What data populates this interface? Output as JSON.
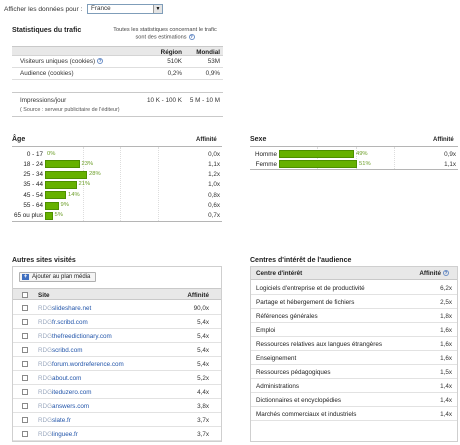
{
  "filter": {
    "label": "Afficher les données pour :",
    "country": "France"
  },
  "stats": {
    "title": "Statistiques du trafic",
    "note": "Toutes les statistiques concernant le trafic sont des estimations",
    "col_region": "Région",
    "col_world": "Mondial",
    "rows": [
      {
        "label": "Visiteurs uniques (cookies)",
        "region": "510K",
        "world": "53M"
      },
      {
        "label": "Audience (cookies)",
        "region": "0,2%",
        "world": "0,9%"
      }
    ],
    "impressions": {
      "label": "Impressions/jour",
      "region": "10 K - 100 K",
      "world": "5 M - 10 M",
      "source": "( Source : serveur publicitaire de l'éditeur)"
    }
  },
  "age": {
    "title": "Âge",
    "affinity_label": "Affinité",
    "rows": [
      {
        "label": "0 - 17",
        "pct": 0,
        "pct_text": "0%",
        "aff": "0,0x"
      },
      {
        "label": "18 - 24",
        "pct": 23,
        "pct_text": "23%",
        "aff": "1,1x"
      },
      {
        "label": "25 - 34",
        "pct": 28,
        "pct_text": "28%",
        "aff": "1,2x"
      },
      {
        "label": "35 - 44",
        "pct": 21,
        "pct_text": "21%",
        "aff": "1,0x"
      },
      {
        "label": "45 - 54",
        "pct": 14,
        "pct_text": "14%",
        "aff": "0,8x"
      },
      {
        "label": "55 - 64",
        "pct": 9,
        "pct_text": "9%",
        "aff": "0,6x"
      },
      {
        "label": "65 ou plus",
        "pct": 5,
        "pct_text": "5%",
        "aff": "0,7x"
      }
    ]
  },
  "sex": {
    "title": "Sexe",
    "affinity_label": "Affinité",
    "rows": [
      {
        "label": "Homme",
        "pct": 49,
        "pct_text": "49%",
        "aff": "0,9x"
      },
      {
        "label": "Femme",
        "pct": 51,
        "pct_text": "51%",
        "aff": "1,1x"
      }
    ]
  },
  "sites": {
    "title": "Autres sites visités",
    "add_button": "Ajouter au plan média",
    "col_site": "Site",
    "col_affinity": "Affinité",
    "prefix": "RDG",
    "rows": [
      {
        "site": "slideshare.net",
        "aff": "90,0x"
      },
      {
        "site": "fr.scribd.com",
        "aff": "5,4x"
      },
      {
        "site": "thefreedictionary.com",
        "aff": "5,4x"
      },
      {
        "site": "scribd.com",
        "aff": "5,4x"
      },
      {
        "site": "forum.wordreference.com",
        "aff": "5,4x"
      },
      {
        "site": "about.com",
        "aff": "5,2x"
      },
      {
        "site": "iteduzero.com",
        "aff": "4,4x"
      },
      {
        "site": "answers.com",
        "aff": "3,8x"
      },
      {
        "site": "slate.fr",
        "aff": "3,7x"
      },
      {
        "site": "linguee.fr",
        "aff": "3,7x"
      }
    ]
  },
  "interests": {
    "title": "Centres d'intérêt de l'audience",
    "col_name": "Centre d'intérêt",
    "col_affinity": "Affinité",
    "rows": [
      {
        "name": "Logiciels d'entreprise et de productivité",
        "aff": "6,2x"
      },
      {
        "name": "Partage et hébergement de fichiers",
        "aff": "2,5x"
      },
      {
        "name": "Références générales",
        "aff": "1,8x"
      },
      {
        "name": "Emploi",
        "aff": "1,6x"
      },
      {
        "name": "Ressources relatives aux langues étrangères",
        "aff": "1,6x"
      },
      {
        "name": "Enseignement",
        "aff": "1,6x"
      },
      {
        "name": "Ressources pédagogiques",
        "aff": "1,5x"
      },
      {
        "name": "Administrations",
        "aff": "1,4x"
      },
      {
        "name": "Dictionnaires et encyclopédies",
        "aff": "1,4x"
      },
      {
        "name": "Marchés commerciaux et industriels",
        "aff": "1,4x"
      }
    ]
  },
  "colors": {
    "bar": "#66b100",
    "link": "#2255aa"
  }
}
